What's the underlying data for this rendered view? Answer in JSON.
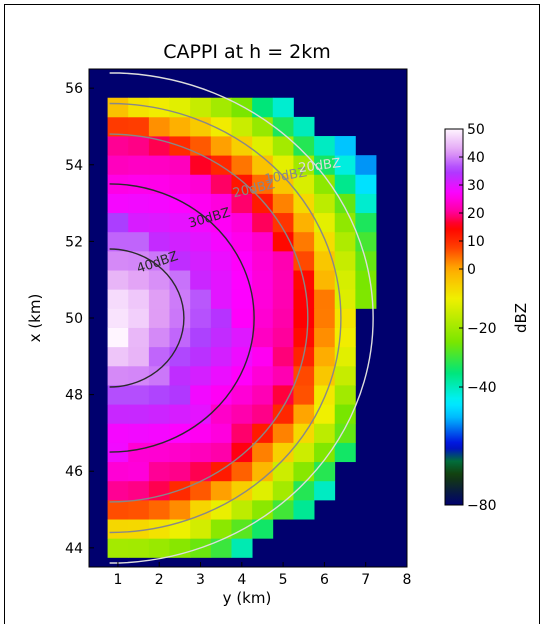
{
  "chart_data": {
    "type": "heatmap",
    "title": "CAPPI at h = 2km",
    "xlabel": "y (km)",
    "ylabel": "x (km)",
    "xlim": [
      0.3,
      8
    ],
    "ylim": [
      43.5,
      56.5
    ],
    "xticks": [
      "1",
      "2",
      "3",
      "4",
      "5",
      "6",
      "7",
      "8"
    ],
    "yticks": [
      "44",
      "46",
      "48",
      "50",
      "52",
      "54",
      "56"
    ],
    "grid": false,
    "background_color": "#00006e",
    "colorbar": {
      "label": "dBZ",
      "range": [
        -80,
        50
      ],
      "ticks": [
        "50",
        "40",
        "30",
        "20",
        "10",
        "0",
        "−20",
        "−40",
        "−80"
      ]
    },
    "grid_spec": {
      "x_centers": [
        1,
        1.5,
        2,
        2.5,
        3,
        3.5,
        4,
        4.5,
        5,
        5.5,
        6,
        6.5,
        7,
        7.5
      ],
      "row_x_min": 44,
      "row_x_max": 55.5,
      "row_step": 0.5
    },
    "field": {
      "description": "reflectivity peak at center",
      "center": [
        0.8,
        50
      ],
      "peak_dbz": 50,
      "radial_decay_dbz_per_km": 5.8,
      "edge_left_max_y": [
        [
          44.0,
          4.2
        ],
        [
          44.5,
          4.8
        ],
        [
          45.0,
          5.8
        ],
        [
          45.5,
          6.2
        ],
        [
          46.0,
          6.3
        ],
        [
          46.5,
          6.5
        ],
        [
          47.0,
          6.5
        ],
        [
          47.5,
          6.8
        ],
        [
          48.0,
          6.8
        ],
        [
          48.5,
          6.8
        ],
        [
          49.0,
          6.8
        ],
        [
          49.5,
          6.8
        ],
        [
          50.0,
          6.8
        ],
        [
          50.5,
          7.3
        ],
        [
          51.0,
          7.3
        ],
        [
          51.5,
          7.3
        ],
        [
          52.0,
          7.3
        ],
        [
          52.5,
          7.3
        ],
        [
          53.0,
          7.3
        ],
        [
          53.5,
          7.3
        ],
        [
          54.0,
          7.3
        ],
        [
          54.5,
          6.8
        ],
        [
          55.0,
          5.8
        ],
        [
          55.5,
          5.2
        ]
      ]
    },
    "contours": [
      {
        "label": "40dBZ",
        "radius_km": 1.8,
        "color": "#2a2a2a"
      },
      {
        "label": "30dBZ",
        "radius_km": 3.5,
        "color": "#2a2a2a"
      },
      {
        "label": "20dBZ",
        "radius_km": 4.8,
        "color": "#888888"
      },
      {
        "label": "10dBZ",
        "radius_km": 5.6,
        "color": "#888888"
      },
      {
        "label": "20dBZ",
        "radius_km": 6.4,
        "color": "#dddddd"
      }
    ]
  }
}
